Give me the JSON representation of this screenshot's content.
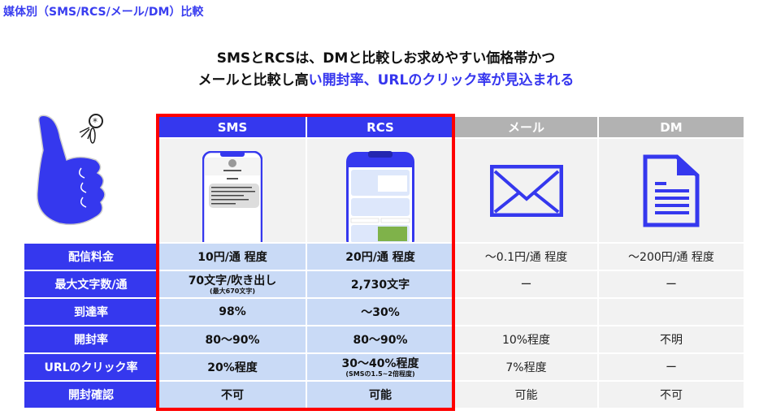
{
  "title": "媒体別（SMS/RCS/メール/DM）比較",
  "headline": {
    "line1": "SMSとRCSは、DMと比較しお求めやすい価格帯かつ",
    "line2_black": "メールと比較し高",
    "line2_blue": "い開封率、URLのクリック率が見込まれる"
  },
  "colors": {
    "accent": "#3538ee",
    "highlight": "#c9daf6",
    "gray_header": "#b2b2b2",
    "red_frame": "#ff0000"
  },
  "columns": [
    "SMS",
    "RCS",
    "メール",
    "DM"
  ],
  "icons": {
    "sms": "sms-phone-mockup",
    "rcs": "rcs-phone-mockup",
    "mail": "envelope-icon",
    "dm": "document-icon",
    "hero": "thumbs-up-icon"
  },
  "rows": [
    {
      "label": "配信料金",
      "sms": "10円/通 程度",
      "rcs": "20円/通 程度",
      "mail": "〜0.1円/通 程度",
      "dm": "〜200円/通 程度"
    },
    {
      "label": "最大文字数/通",
      "sms": "70文字/吹き出し",
      "sms_note": "(最大670文字)",
      "rcs": "2,730文字",
      "mail": "ー",
      "dm": "ー"
    },
    {
      "label": "到達率",
      "sms": "98%",
      "rcs": "〜30%",
      "mail": "",
      "dm": ""
    },
    {
      "label": "開封率",
      "sms": "80〜90%",
      "rcs": "80〜90%",
      "mail": "10%程度",
      "dm": "不明"
    },
    {
      "label": "URLのクリック率",
      "sms": "20%程度",
      "rcs": "30〜40%程度",
      "rcs_note": "(SMSの1.5~2倍程度)",
      "mail": "7%程度",
      "dm": "ー"
    },
    {
      "label": "開封確認",
      "sms": "不可",
      "rcs": "可能",
      "mail": "可能",
      "dm": "不可"
    }
  ]
}
